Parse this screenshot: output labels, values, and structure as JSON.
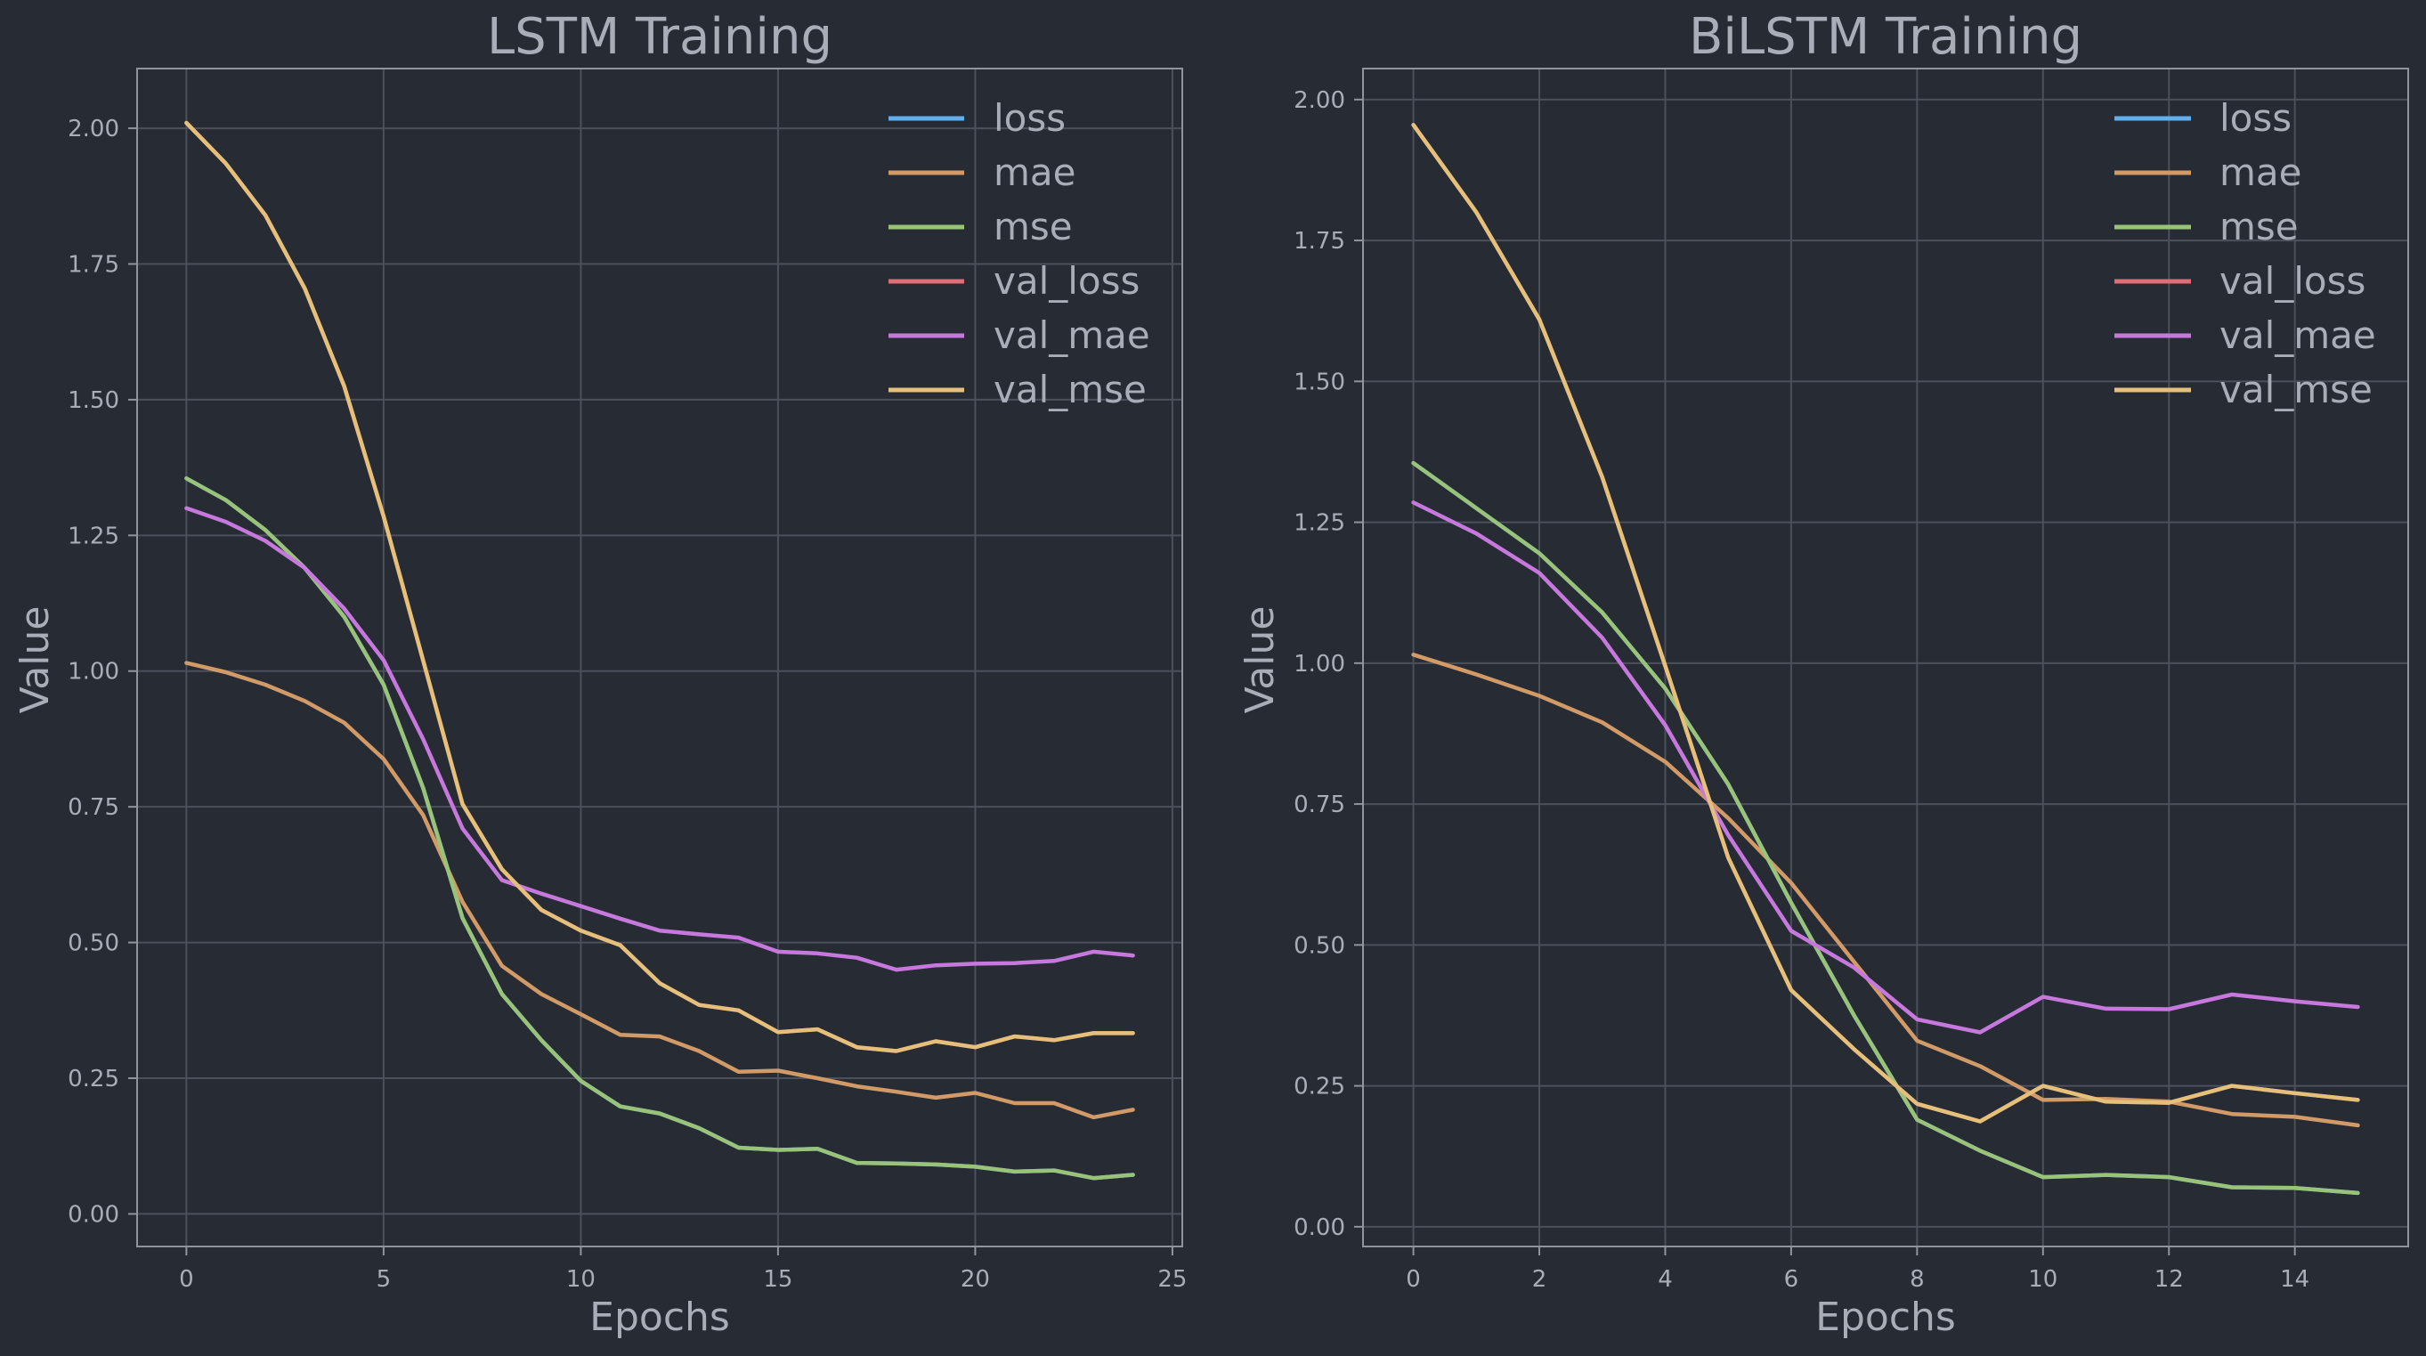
{
  "chart_data": [
    {
      "type": "line",
      "title": "LSTM Training",
      "xlabel": "Epochs",
      "ylabel": "Value",
      "xlim": [
        -1.25,
        25.25
      ],
      "ylim": [
        -0.06,
        2.11
      ],
      "xticks": [
        0,
        5,
        10,
        15,
        20,
        25
      ],
      "xtick_labels": [
        "0",
        "5",
        "10",
        "15",
        "20",
        "25"
      ],
      "yticks": [
        0.0,
        0.25,
        0.5,
        0.75,
        1.0,
        1.25,
        1.5,
        1.75,
        2.0
      ],
      "ytick_labels": [
        "0.00",
        "0.25",
        "0.50",
        "0.75",
        "1.00",
        "1.25",
        "1.50",
        "1.75",
        "2.00"
      ],
      "grid": true,
      "legend_position": "top-right",
      "x": [
        0,
        1,
        2,
        3,
        4,
        5,
        6,
        7,
        8,
        9,
        10,
        11,
        12,
        13,
        14,
        15,
        16,
        17,
        18,
        19,
        20,
        21,
        22,
        23,
        24
      ],
      "series": [
        {
          "name": "loss",
          "color": "#61afef",
          "values": [
            1.355,
            1.315,
            1.26,
            1.19,
            1.1,
            0.975,
            0.785,
            0.545,
            0.405,
            0.32,
            0.245,
            0.198,
            0.185,
            0.158,
            0.122,
            0.118,
            0.12,
            0.094,
            0.093,
            0.091,
            0.087,
            0.078,
            0.08,
            0.066,
            0.072
          ]
        },
        {
          "name": "mae",
          "color": "#d19a66",
          "values": [
            1.015,
            0.998,
            0.975,
            0.945,
            0.905,
            0.838,
            0.735,
            0.575,
            0.457,
            0.405,
            0.368,
            0.33,
            0.327,
            0.3,
            0.262,
            0.264,
            0.25,
            0.235,
            0.225,
            0.214,
            0.223,
            0.204,
            0.204,
            0.178,
            0.192
          ]
        },
        {
          "name": "mse",
          "color": "#98c379",
          "values": [
            1.355,
            1.315,
            1.26,
            1.19,
            1.1,
            0.975,
            0.785,
            0.545,
            0.405,
            0.32,
            0.245,
            0.198,
            0.185,
            0.158,
            0.122,
            0.118,
            0.12,
            0.094,
            0.093,
            0.091,
            0.087,
            0.078,
            0.08,
            0.066,
            0.072
          ]
        },
        {
          "name": "val_loss",
          "color": "#e06c75",
          "values": [
            2.01,
            1.935,
            1.84,
            1.705,
            1.525,
            1.285,
            1.02,
            0.755,
            0.635,
            0.56,
            0.522,
            0.495,
            0.425,
            0.385,
            0.375,
            0.335,
            0.34,
            0.307,
            0.3,
            0.318,
            0.307,
            0.327,
            0.32,
            0.333,
            0.333
          ]
        },
        {
          "name": "val_mae",
          "color": "#c678dd",
          "values": [
            1.3,
            1.275,
            1.24,
            1.19,
            1.115,
            1.02,
            0.875,
            0.71,
            0.615,
            0.59,
            0.567,
            0.544,
            0.522,
            0.515,
            0.509,
            0.483,
            0.48,
            0.472,
            0.45,
            0.458,
            0.461,
            0.462,
            0.466,
            0.483,
            0.476
          ]
        },
        {
          "name": "val_mse",
          "color": "#e5c07b",
          "values": [
            2.01,
            1.935,
            1.84,
            1.705,
            1.525,
            1.285,
            1.02,
            0.755,
            0.635,
            0.56,
            0.522,
            0.495,
            0.425,
            0.385,
            0.375,
            0.335,
            0.34,
            0.307,
            0.3,
            0.318,
            0.307,
            0.327,
            0.32,
            0.333,
            0.333
          ]
        }
      ]
    },
    {
      "type": "line",
      "title": "BiLSTM Training",
      "xlabel": "Epochs",
      "ylabel": "Value",
      "xlim": [
        -0.8,
        15.8
      ],
      "ylim": [
        -0.035,
        2.055
      ],
      "xticks": [
        0,
        2,
        4,
        6,
        8,
        10,
        12,
        14
      ],
      "xtick_labels": [
        "0",
        "2",
        "4",
        "6",
        "8",
        "10",
        "12",
        "14"
      ],
      "yticks": [
        0.0,
        0.25,
        0.5,
        0.75,
        1.0,
        1.25,
        1.5,
        1.75,
        2.0
      ],
      "ytick_labels": [
        "0.00",
        "0.25",
        "0.50",
        "0.75",
        "1.00",
        "1.25",
        "1.50",
        "1.75",
        "2.00"
      ],
      "grid": true,
      "legend_position": "top-right",
      "x": [
        0,
        1,
        2,
        3,
        4,
        5,
        6,
        7,
        8,
        9,
        10,
        11,
        12,
        13,
        14,
        15
      ],
      "series": [
        {
          "name": "loss",
          "color": "#61afef",
          "values": [
            1.355,
            1.275,
            1.195,
            1.09,
            0.955,
            0.785,
            0.575,
            0.375,
            0.19,
            0.135,
            0.088,
            0.092,
            0.088,
            0.07,
            0.069,
            0.06
          ]
        },
        {
          "name": "mae",
          "color": "#d19a66",
          "values": [
            1.015,
            0.98,
            0.942,
            0.895,
            0.825,
            0.725,
            0.61,
            0.47,
            0.33,
            0.285,
            0.225,
            0.227,
            0.222,
            0.2,
            0.195,
            0.18
          ]
        },
        {
          "name": "mse",
          "color": "#98c379",
          "values": [
            1.355,
            1.275,
            1.195,
            1.09,
            0.955,
            0.785,
            0.575,
            0.375,
            0.19,
            0.135,
            0.088,
            0.092,
            0.088,
            0.07,
            0.069,
            0.06
          ]
        },
        {
          "name": "val_loss",
          "color": "#e06c75",
          "values": [
            1.955,
            1.8,
            1.61,
            1.33,
            0.995,
            0.655,
            0.42,
            0.315,
            0.218,
            0.187,
            0.25,
            0.222,
            0.22,
            0.25,
            0.237,
            0.225
          ]
        },
        {
          "name": "val_mae",
          "color": "#c678dd",
          "values": [
            1.285,
            1.23,
            1.16,
            1.045,
            0.89,
            0.695,
            0.525,
            0.46,
            0.368,
            0.345,
            0.408,
            0.387,
            0.386,
            0.412,
            0.4,
            0.39
          ]
        },
        {
          "name": "val_mse",
          "color": "#e5c07b",
          "values": [
            1.955,
            1.8,
            1.61,
            1.33,
            0.995,
            0.655,
            0.42,
            0.315,
            0.218,
            0.187,
            0.25,
            0.222,
            0.22,
            0.25,
            0.237,
            0.225
          ]
        }
      ]
    }
  ]
}
